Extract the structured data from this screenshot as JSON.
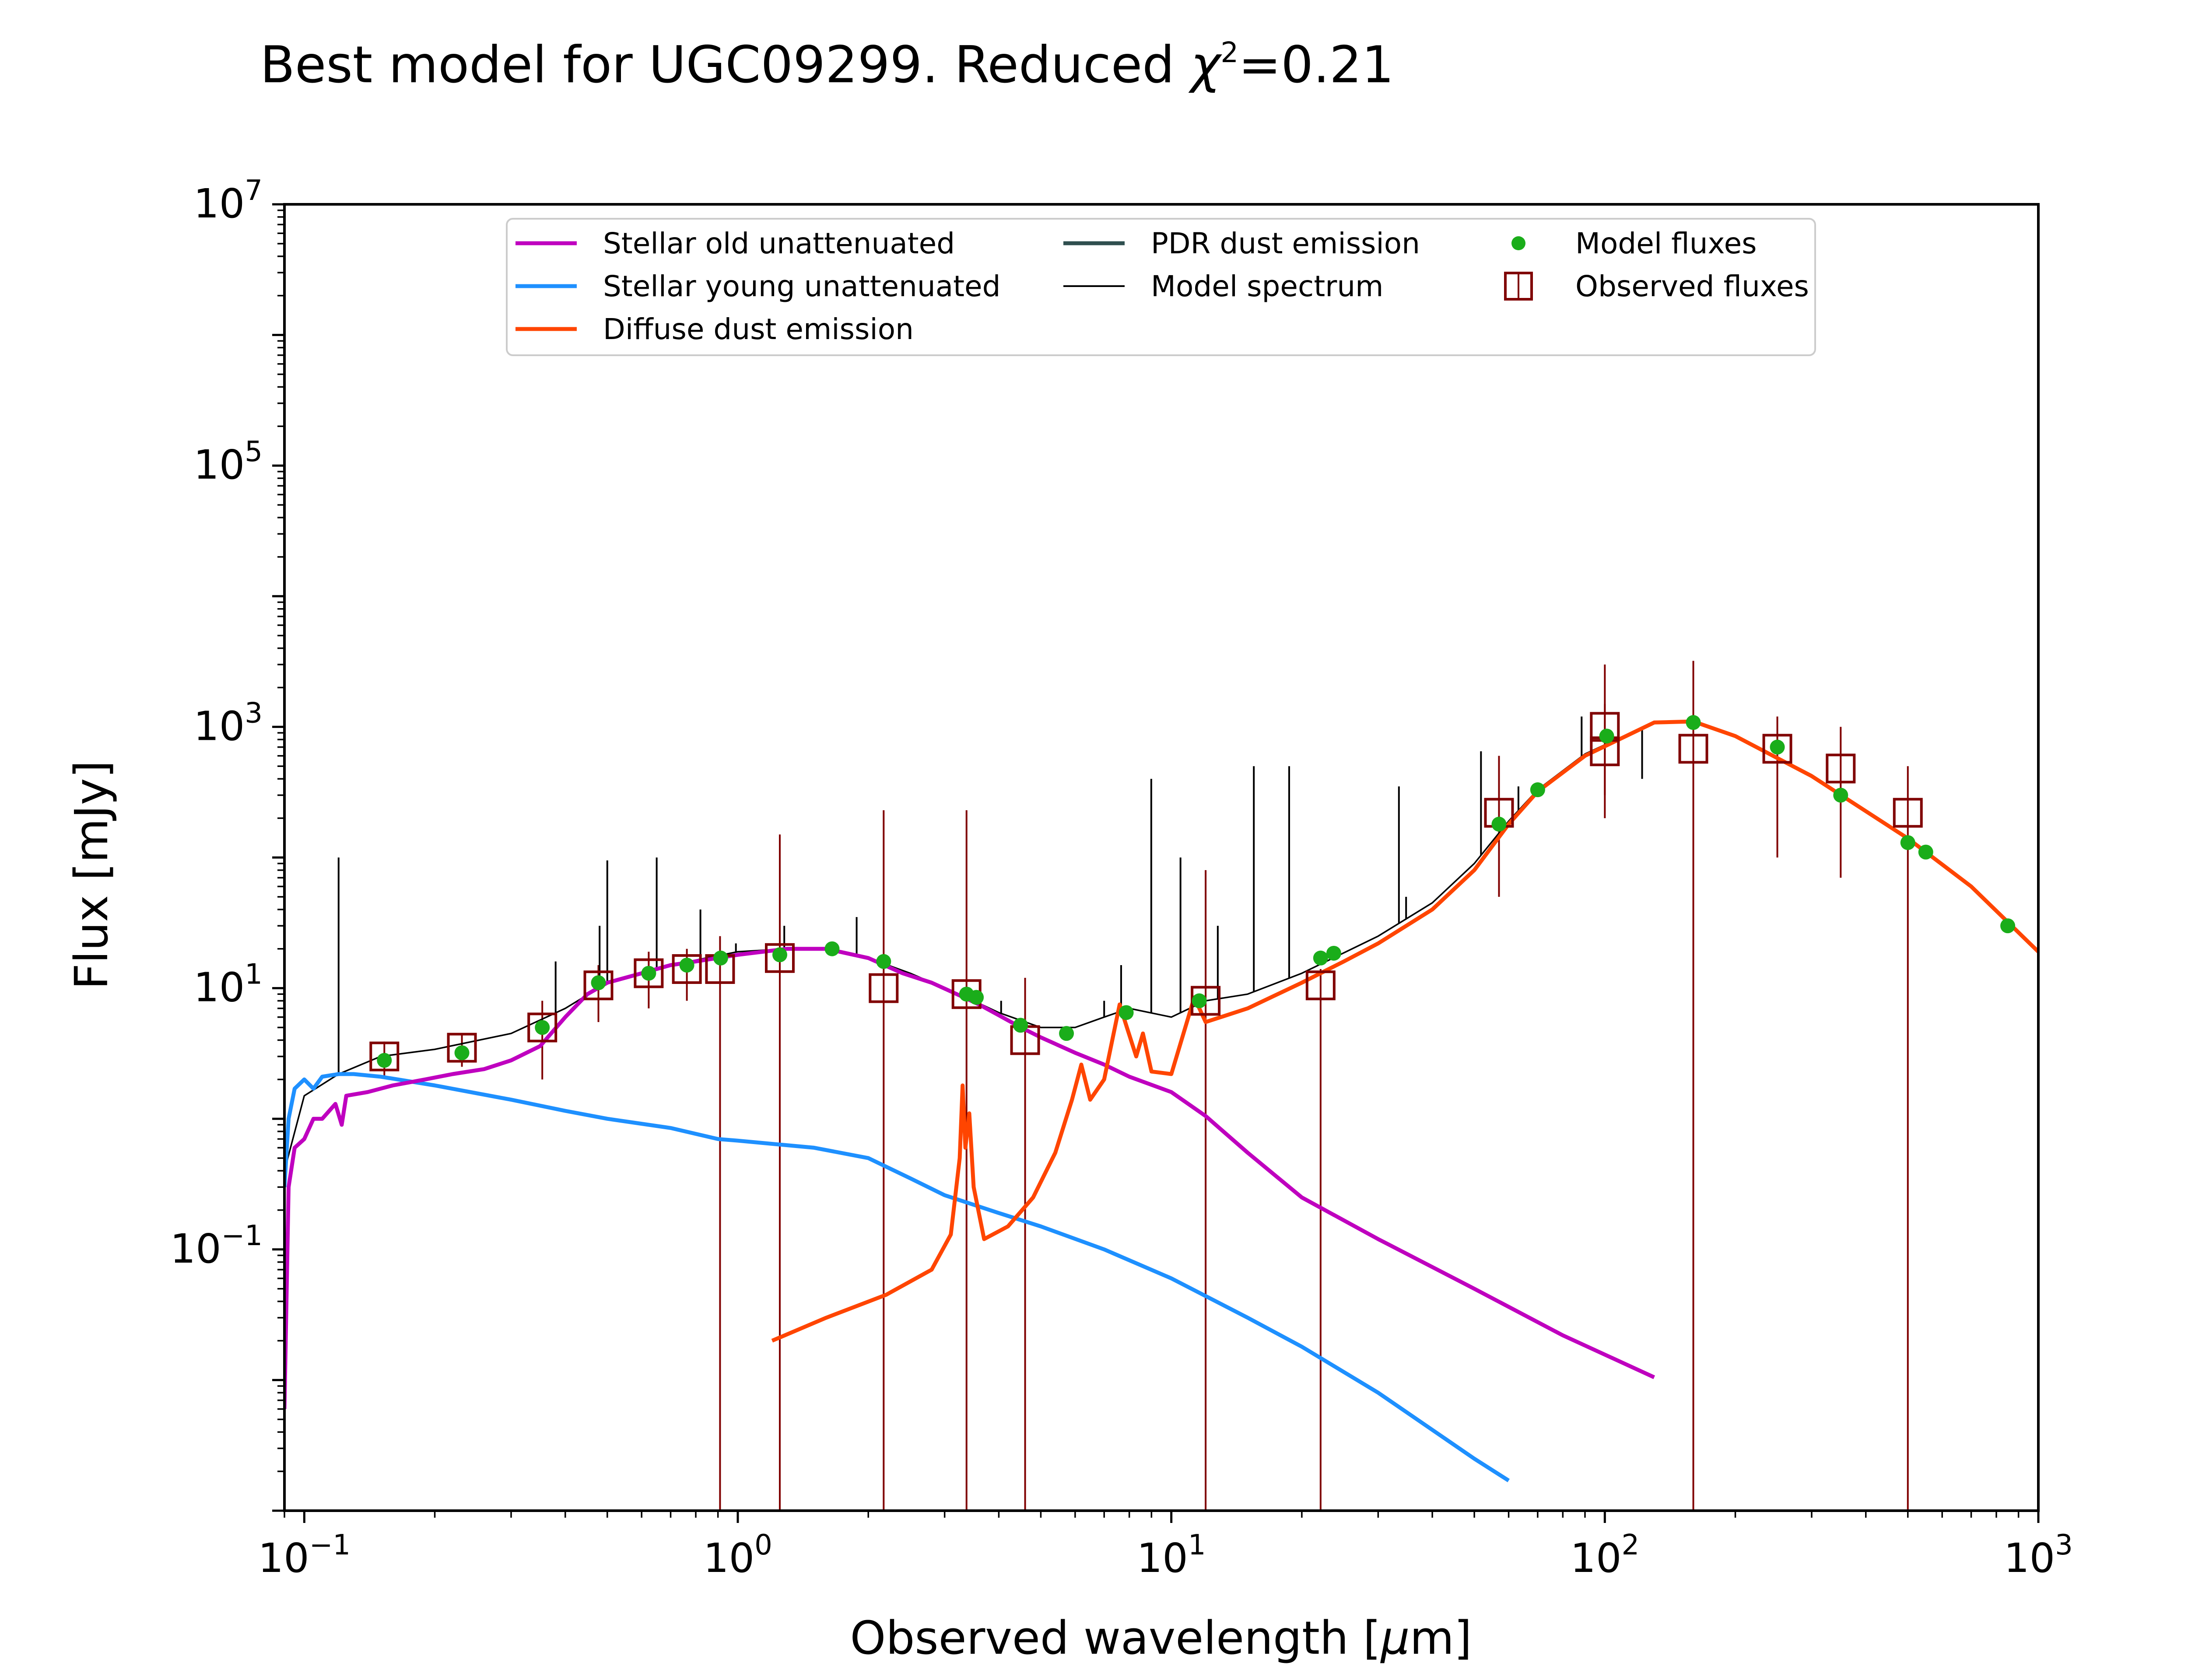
{
  "chart_data": {
    "type": "line",
    "title": "Best model for UGC09299. Reduced χ²=0.21",
    "title_parts": {
      "main": "Best model for UGC09299. Reduced ",
      "chi": "χ",
      "sup": "2",
      "rest": "=0.21"
    },
    "xlabel": "Observed wavelength [μm]",
    "xlabel_parts": {
      "main": "Observed wavelength [",
      "mu": "μ",
      "rest": "m]"
    },
    "ylabel": "Flux [mJy]",
    "x_scale": "log",
    "y_scale": "log",
    "xlim": [
      0.09,
      1000
    ],
    "ylim": [
      0.001,
      10000000
    ],
    "x_ticks": [
      {
        "value": 0.1,
        "base": "10",
        "exp": "−1"
      },
      {
        "value": 1,
        "base": "10",
        "exp": "0"
      },
      {
        "value": 10,
        "base": "10",
        "exp": "1"
      },
      {
        "value": 100,
        "base": "10",
        "exp": "2"
      },
      {
        "value": 1000,
        "base": "10",
        "exp": "3"
      }
    ],
    "y_ticks": [
      {
        "value": 0.1,
        "base": "10",
        "exp": "−1"
      },
      {
        "value": 10,
        "base": "10",
        "exp": "1"
      },
      {
        "value": 1000,
        "base": "10",
        "exp": "3"
      },
      {
        "value": 100000,
        "base": "10",
        "exp": "5"
      },
      {
        "value": 10000000,
        "base": "10",
        "exp": "7"
      }
    ],
    "grid": false,
    "legend_position": "top-center",
    "colors": {
      "stellar_old": "#bf00bf",
      "stellar_young": "#1e90ff",
      "diffuse_dust": "#ff4500",
      "pdr_dust": "#2f4f4f",
      "model_spectrum": "#000000",
      "model_fluxes": "#1aad1a",
      "observed_fluxes": "#800000"
    },
    "legend": [
      {
        "key": "stellar_old",
        "label": "Stellar old unattenuated",
        "kind": "line"
      },
      {
        "key": "stellar_young",
        "label": "Stellar young unattenuated",
        "kind": "line"
      },
      {
        "key": "diffuse_dust",
        "label": "Diffuse dust emission",
        "kind": "line"
      },
      {
        "key": "pdr_dust",
        "label": "PDR dust emission",
        "kind": "line"
      },
      {
        "key": "model_spectrum",
        "label": "Model spectrum",
        "kind": "thinline"
      },
      {
        "key": "model_fluxes",
        "label": "Model fluxes",
        "kind": "dot"
      },
      {
        "key": "observed_fluxes",
        "label": "Observed fluxes",
        "kind": "square"
      }
    ],
    "series": [
      {
        "key": "stellar_old",
        "label": "Stellar old unattenuated",
        "points": [
          [
            0.09,
            0.006
          ],
          [
            0.092,
            0.3
          ],
          [
            0.095,
            0.6
          ],
          [
            0.1,
            0.7
          ],
          [
            0.105,
            1.0
          ],
          [
            0.11,
            1.0
          ],
          [
            0.118,
            1.3
          ],
          [
            0.122,
            0.9
          ],
          [
            0.125,
            1.5
          ],
          [
            0.14,
            1.6
          ],
          [
            0.16,
            1.8
          ],
          [
            0.19,
            2.0
          ],
          [
            0.22,
            2.2
          ],
          [
            0.26,
            2.4
          ],
          [
            0.3,
            2.8
          ],
          [
            0.35,
            3.6
          ],
          [
            0.4,
            6
          ],
          [
            0.45,
            9
          ],
          [
            0.5,
            11
          ],
          [
            0.6,
            13
          ],
          [
            0.7,
            15
          ],
          [
            0.8,
            16
          ],
          [
            1.0,
            18
          ],
          [
            1.3,
            20
          ],
          [
            1.6,
            20
          ],
          [
            2.0,
            17
          ],
          [
            2.4,
            13
          ],
          [
            2.8,
            11
          ],
          [
            3.2,
            9
          ],
          [
            3.6,
            7.5
          ],
          [
            4.0,
            6.2
          ],
          [
            4.5,
            5
          ],
          [
            5.0,
            4.2
          ],
          [
            6,
            3.2
          ],
          [
            7,
            2.6
          ],
          [
            8,
            2.1
          ],
          [
            10,
            1.6
          ],
          [
            12,
            1.05
          ],
          [
            15,
            0.55
          ],
          [
            20,
            0.25
          ],
          [
            30,
            0.12
          ],
          [
            50,
            0.05
          ],
          [
            80,
            0.022
          ],
          [
            130,
            0.0105
          ]
        ]
      },
      {
        "key": "stellar_young",
        "label": "Stellar young unattenuated",
        "points": [
          [
            0.09,
            0.3
          ],
          [
            0.092,
            1.0
          ],
          [
            0.095,
            1.7
          ],
          [
            0.1,
            2.0
          ],
          [
            0.105,
            1.7
          ],
          [
            0.11,
            2.1
          ],
          [
            0.12,
            2.2
          ],
          [
            0.13,
            2.2
          ],
          [
            0.15,
            2.1
          ],
          [
            0.2,
            1.8
          ],
          [
            0.3,
            1.4
          ],
          [
            0.4,
            1.15
          ],
          [
            0.5,
            1.0
          ],
          [
            0.7,
            0.85
          ],
          [
            0.9,
            0.7
          ],
          [
            1.0,
            0.68
          ],
          [
            1.5,
            0.6
          ],
          [
            2.0,
            0.5
          ],
          [
            2.5,
            0.35
          ],
          [
            3.0,
            0.26
          ],
          [
            4.0,
            0.19
          ],
          [
            5.0,
            0.15
          ],
          [
            7,
            0.1
          ],
          [
            10,
            0.06
          ],
          [
            15,
            0.03
          ],
          [
            20,
            0.018
          ],
          [
            30,
            0.008
          ],
          [
            50,
            0.0025
          ],
          [
            60,
            0.0017
          ]
        ]
      },
      {
        "key": "diffuse_dust",
        "label": "Diffuse dust emission",
        "points": [
          [
            1.2,
            0.02
          ],
          [
            1.6,
            0.03
          ],
          [
            2.2,
            0.045
          ],
          [
            2.8,
            0.07
          ],
          [
            3.1,
            0.13
          ],
          [
            3.25,
            0.5
          ],
          [
            3.3,
            1.8
          ],
          [
            3.35,
            0.6
          ],
          [
            3.42,
            1.1
          ],
          [
            3.5,
            0.3
          ],
          [
            3.7,
            0.12
          ],
          [
            4.2,
            0.15
          ],
          [
            4.8,
            0.25
          ],
          [
            5.4,
            0.55
          ],
          [
            5.9,
            1.4
          ],
          [
            6.2,
            2.6
          ],
          [
            6.5,
            1.4
          ],
          [
            7.0,
            2.0
          ],
          [
            7.6,
            7.5
          ],
          [
            7.9,
            5.0
          ],
          [
            8.3,
            3.0
          ],
          [
            8.6,
            4.5
          ],
          [
            9.0,
            2.3
          ],
          [
            10,
            2.2
          ],
          [
            11.3,
            8.5
          ],
          [
            12,
            5.5
          ],
          [
            15,
            7
          ],
          [
            20,
            11
          ],
          [
            25,
            16
          ],
          [
            30,
            22
          ],
          [
            40,
            40
          ],
          [
            50,
            80
          ],
          [
            60,
            180
          ],
          [
            70,
            320
          ],
          [
            90,
            600
          ],
          [
            130,
            1080
          ],
          [
            160,
            1100
          ],
          [
            200,
            850
          ],
          [
            300,
            420
          ],
          [
            500,
            140
          ],
          [
            700,
            60
          ],
          [
            1000,
            19
          ]
        ]
      },
      {
        "key": "model_spectrum",
        "label": "Model spectrum",
        "points": [
          [
            0.09,
            0.4
          ],
          [
            0.1,
            1.5
          ],
          [
            0.12,
            2.2
          ],
          [
            0.15,
            3.0
          ],
          [
            0.2,
            3.4
          ],
          [
            0.3,
            4.5
          ],
          [
            0.4,
            7
          ],
          [
            0.5,
            11
          ],
          [
            0.7,
            15
          ],
          [
            1.0,
            19
          ],
          [
            1.3,
            20
          ],
          [
            1.6,
            20
          ],
          [
            2.0,
            17
          ],
          [
            2.5,
            13
          ],
          [
            3.0,
            10
          ],
          [
            3.5,
            8
          ],
          [
            4.0,
            6.5
          ],
          [
            5.0,
            5
          ],
          [
            6.0,
            5
          ],
          [
            7.0,
            6
          ],
          [
            8.0,
            7
          ],
          [
            10,
            6
          ],
          [
            12,
            8
          ],
          [
            15,
            9
          ],
          [
            20,
            13
          ],
          [
            30,
            25
          ],
          [
            40,
            45
          ],
          [
            50,
            90
          ],
          [
            60,
            190
          ],
          [
            70,
            330
          ],
          [
            90,
            620
          ],
          [
            130,
            1090
          ],
          [
            160,
            1100
          ],
          [
            200,
            860
          ],
          [
            300,
            430
          ],
          [
            500,
            140
          ],
          [
            700,
            60
          ],
          [
            1000,
            19
          ]
        ]
      },
      {
        "key": "model_spectrum_lines",
        "label": "",
        "points": [
          [
            0.12,
            100
          ],
          [
            0.38,
            16
          ],
          [
            0.48,
            30
          ],
          [
            0.5,
            95
          ],
          [
            0.65,
            100
          ],
          [
            0.82,
            40
          ],
          [
            0.99,
            22
          ],
          [
            1.28,
            30
          ],
          [
            1.88,
            35
          ],
          [
            4.05,
            8
          ],
          [
            7.0,
            8
          ],
          [
            7.66,
            15
          ],
          [
            8.99,
            400
          ],
          [
            10.5,
            100
          ],
          [
            12.8,
            30
          ],
          [
            15.5,
            500
          ],
          [
            18.7,
            500
          ],
          [
            33.5,
            350
          ],
          [
            34.8,
            50
          ],
          [
            51.8,
            650
          ],
          [
            57.3,
            200
          ],
          [
            63.2,
            350
          ],
          [
            88.4,
            1200
          ],
          [
            121.9,
            400
          ],
          [
            157.7,
            1000
          ]
        ]
      },
      {
        "key": "model_fluxes",
        "label": "Model fluxes",
        "points": [
          [
            0.153,
            2.8
          ],
          [
            0.231,
            3.2
          ],
          [
            0.354,
            5.0
          ],
          [
            0.477,
            11
          ],
          [
            0.623,
            13
          ],
          [
            0.763,
            15
          ],
          [
            0.913,
            17
          ],
          [
            1.25,
            18
          ],
          [
            1.65,
            20
          ],
          [
            2.17,
            16
          ],
          [
            3.37,
            9
          ],
          [
            3.55,
            8.5
          ],
          [
            4.49,
            5.2
          ],
          [
            5.73,
            4.5
          ],
          [
            7.87,
            6.5
          ],
          [
            11.6,
            8
          ],
          [
            22.1,
            17
          ],
          [
            23.7,
            18.5
          ],
          [
            57,
            180
          ],
          [
            70,
            330
          ],
          [
            101,
            850
          ],
          [
            160,
            1080
          ],
          [
            250,
            700
          ],
          [
            350,
            300
          ],
          [
            500,
            130
          ],
          [
            550,
            110
          ],
          [
            850,
            30
          ]
        ]
      },
      {
        "key": "observed_fluxes",
        "label": "Observed fluxes",
        "points": [
          [
            0.153,
            3.0,
            2.1,
            3.9
          ],
          [
            0.231,
            3.5,
            2.5,
            4.5
          ],
          [
            0.354,
            5.0,
            2.0,
            8.0
          ],
          [
            0.477,
            10.5,
            5.5,
            15
          ],
          [
            0.623,
            13,
            7,
            19
          ],
          [
            0.763,
            14,
            8,
            20
          ],
          [
            0.91,
            14,
            0.001,
            25
          ],
          [
            1.25,
            17,
            0.001,
            150
          ],
          [
            2.17,
            10,
            0.001,
            230
          ],
          [
            3.37,
            9,
            0.001,
            230
          ],
          [
            4.6,
            4,
            0.001,
            12
          ],
          [
            12,
            8,
            0.001,
            80
          ],
          [
            22.1,
            10.5,
            0.001,
            14
          ],
          [
            57,
            220,
            50,
            600
          ],
          [
            100,
            1000,
            300,
            3000
          ],
          [
            100,
            650,
            200,
            1500
          ],
          [
            160,
            680,
            0.001,
            3200
          ],
          [
            250,
            680,
            100,
            1200
          ],
          [
            350,
            480,
            70,
            1000
          ],
          [
            500,
            220,
            0.001,
            500
          ]
        ]
      }
    ]
  }
}
